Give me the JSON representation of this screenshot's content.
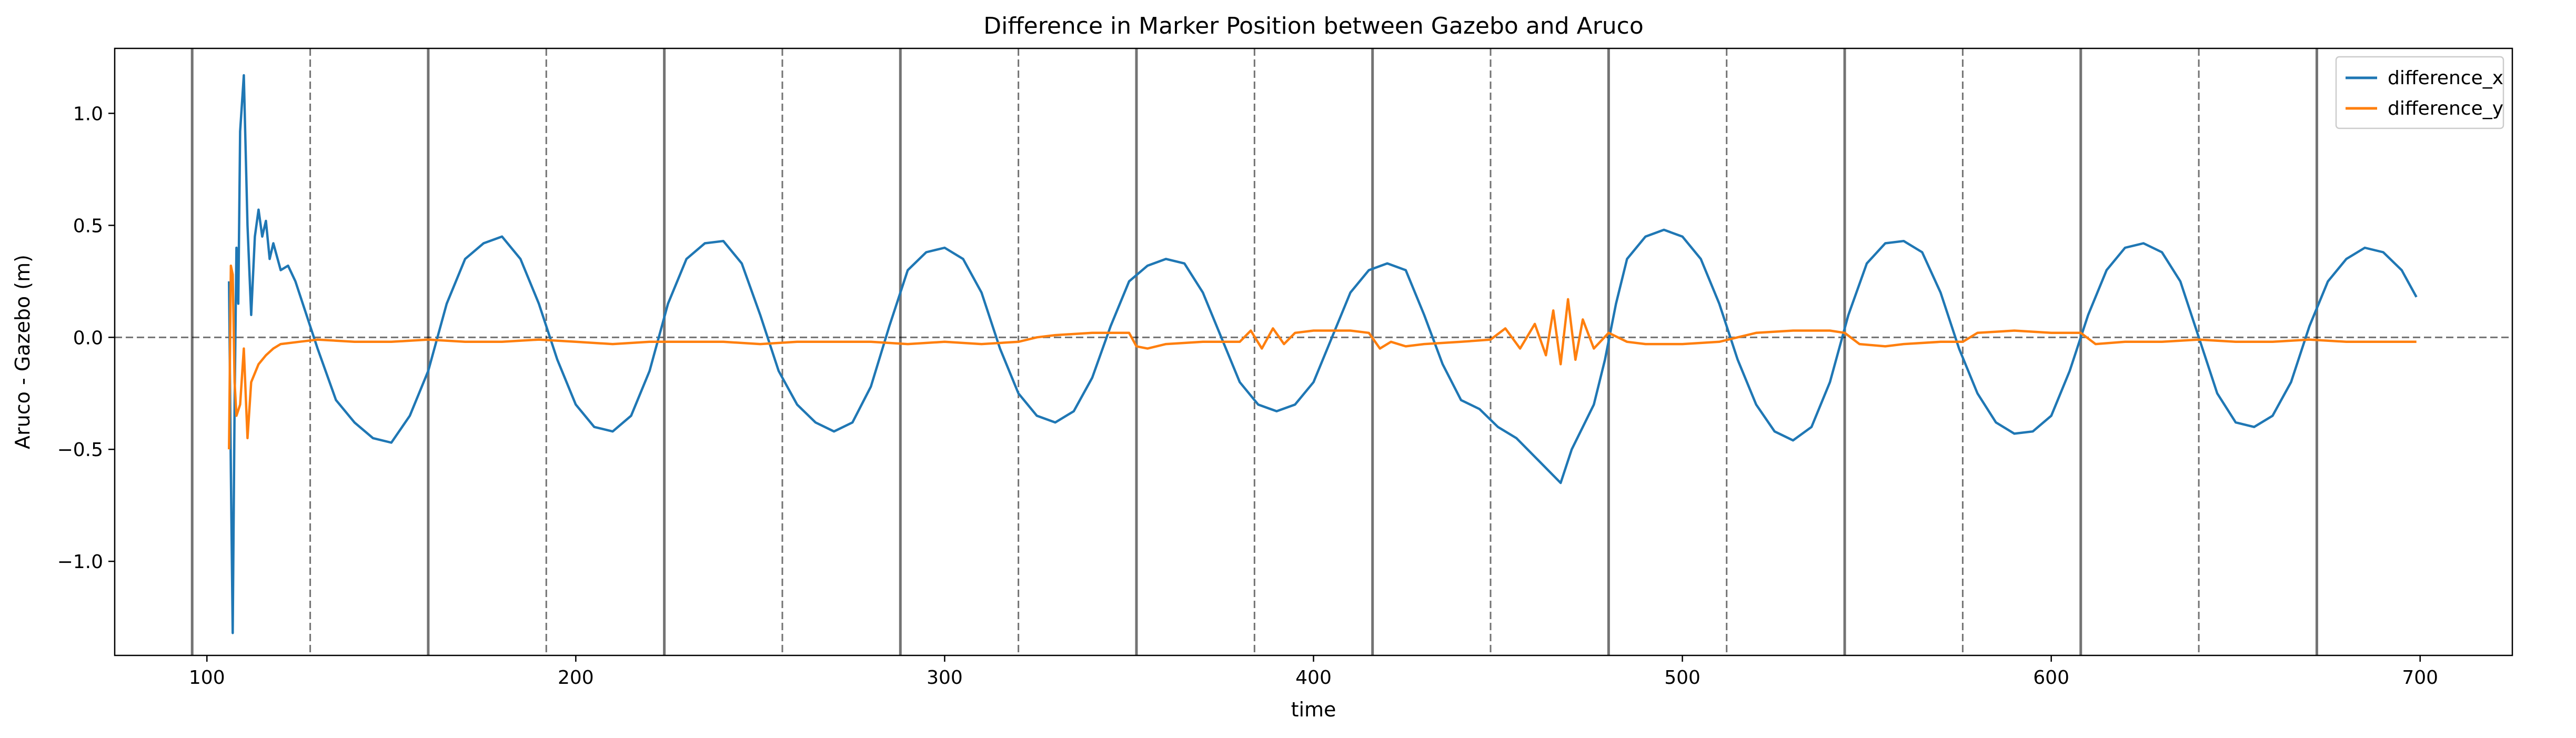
{
  "chart_data": {
    "type": "line",
    "title": "Difference in Marker Position between Gazebo and Aruco",
    "xlabel": "time",
    "ylabel": "Aruco - Gazebo (m)",
    "xlim": [
      75,
      725
    ],
    "ylim": [
      -1.42,
      1.29
    ],
    "xticks": [
      100,
      200,
      300,
      400,
      500,
      600,
      700
    ],
    "yticks": [
      -1.0,
      -0.5,
      0.0,
      0.5,
      1.0
    ],
    "ytick_labels": [
      "−1.0",
      "−0.5",
      "0.0",
      "0.5",
      "1.0"
    ],
    "grid": false,
    "legend": "top-right",
    "zero_line": 0.0,
    "solid_vlines": [
      96,
      160,
      224,
      288,
      352,
      416,
      480,
      544,
      608,
      672
    ],
    "dashed_vlines": [
      128,
      192,
      256,
      320,
      384,
      448,
      512,
      576,
      640
    ],
    "series": [
      {
        "name": "difference_x",
        "color": "#1f77b4",
        "x": [
          106,
          106.5,
          107,
          107.5,
          108,
          108.5,
          109,
          110,
          111,
          112,
          113,
          114,
          115,
          116,
          117,
          118,
          120,
          122,
          124,
          126,
          130,
          135,
          140,
          145,
          150,
          155,
          160,
          165,
          170,
          175,
          180,
          185,
          190,
          195,
          200,
          205,
          210,
          215,
          220,
          225,
          230,
          235,
          240,
          245,
          250,
          255,
          260,
          265,
          270,
          275,
          280,
          285,
          290,
          295,
          300,
          305,
          310,
          315,
          320,
          325,
          330,
          335,
          340,
          345,
          350,
          355,
          360,
          365,
          370,
          375,
          380,
          385,
          390,
          395,
          400,
          405,
          410,
          415,
          420,
          425,
          430,
          435,
          440,
          445,
          450,
          455,
          458,
          461,
          464,
          467,
          470,
          473,
          476,
          479,
          482,
          485,
          490,
          495,
          500,
          505,
          510,
          515,
          520,
          525,
          530,
          535,
          540,
          545,
          550,
          555,
          560,
          565,
          570,
          575,
          580,
          585,
          590,
          595,
          600,
          605,
          610,
          615,
          620,
          625,
          630,
          635,
          640,
          645,
          650,
          655,
          660,
          665,
          670,
          675,
          680,
          685,
          690,
          695,
          699
        ],
        "y": [
          0.25,
          -0.6,
          -1.32,
          -0.3,
          0.4,
          0.15,
          0.92,
          1.17,
          0.5,
          0.1,
          0.45,
          0.57,
          0.45,
          0.52,
          0.35,
          0.42,
          0.3,
          0.32,
          0.25,
          0.15,
          -0.05,
          -0.28,
          -0.38,
          -0.45,
          -0.47,
          -0.35,
          -0.15,
          0.15,
          0.35,
          0.42,
          0.45,
          0.35,
          0.15,
          -0.1,
          -0.3,
          -0.4,
          -0.42,
          -0.35,
          -0.15,
          0.15,
          0.35,
          0.42,
          0.43,
          0.33,
          0.1,
          -0.15,
          -0.3,
          -0.38,
          -0.42,
          -0.38,
          -0.22,
          0.05,
          0.3,
          0.38,
          0.4,
          0.35,
          0.2,
          -0.05,
          -0.25,
          -0.35,
          -0.38,
          -0.33,
          -0.18,
          0.05,
          0.25,
          0.32,
          0.35,
          0.33,
          0.2,
          0.0,
          -0.2,
          -0.3,
          -0.33,
          -0.3,
          -0.2,
          0.0,
          0.2,
          0.3,
          0.33,
          0.3,
          0.1,
          -0.12,
          -0.28,
          -0.32,
          -0.4,
          -0.45,
          -0.5,
          -0.55,
          -0.6,
          -0.65,
          -0.5,
          -0.4,
          -0.3,
          -0.1,
          0.15,
          0.35,
          0.45,
          0.48,
          0.45,
          0.35,
          0.15,
          -0.1,
          -0.3,
          -0.42,
          -0.46,
          -0.4,
          -0.2,
          0.1,
          0.33,
          0.42,
          0.43,
          0.38,
          0.2,
          -0.05,
          -0.25,
          -0.38,
          -0.43,
          -0.42,
          -0.35,
          -0.15,
          0.1,
          0.3,
          0.4,
          0.42,
          0.38,
          0.25,
          0.0,
          -0.25,
          -0.38,
          -0.4,
          -0.35,
          -0.2,
          0.05,
          0.25,
          0.35,
          0.4,
          0.38,
          0.3,
          0.18
        ]
      },
      {
        "name": "difference_y",
        "color": "#ff7f0e",
        "x": [
          106,
          106.5,
          107,
          107.5,
          108,
          109,
          110,
          111,
          112,
          114,
          116,
          118,
          120,
          125,
          130,
          140,
          150,
          160,
          170,
          180,
          190,
          200,
          210,
          220,
          230,
          240,
          250,
          260,
          270,
          280,
          290,
          300,
          310,
          320,
          325,
          330,
          340,
          350,
          352,
          355,
          360,
          370,
          380,
          383,
          386,
          389,
          392,
          395,
          400,
          410,
          415,
          418,
          421,
          425,
          430,
          440,
          448,
          452,
          456,
          460,
          463,
          465,
          467,
          469,
          471,
          473,
          476,
          480,
          485,
          490,
          500,
          510,
          520,
          530,
          540,
          544,
          548,
          555,
          560,
          570,
          576,
          580,
          590,
          600,
          608,
          612,
          620,
          630,
          640,
          650,
          660,
          670,
          680,
          690,
          699
        ],
        "y": [
          -0.5,
          0.32,
          0.28,
          -0.2,
          -0.35,
          -0.3,
          -0.05,
          -0.45,
          -0.2,
          -0.12,
          -0.08,
          -0.05,
          -0.03,
          -0.02,
          -0.01,
          -0.02,
          -0.02,
          -0.01,
          -0.02,
          -0.02,
          -0.01,
          -0.02,
          -0.03,
          -0.02,
          -0.02,
          -0.02,
          -0.03,
          -0.02,
          -0.02,
          -0.02,
          -0.03,
          -0.02,
          -0.03,
          -0.02,
          0.0,
          0.01,
          0.02,
          0.02,
          -0.04,
          -0.05,
          -0.03,
          -0.02,
          -0.02,
          0.03,
          -0.05,
          0.04,
          -0.03,
          0.02,
          0.03,
          0.03,
          0.02,
          -0.05,
          -0.02,
          -0.04,
          -0.03,
          -0.02,
          -0.01,
          0.04,
          -0.05,
          0.06,
          -0.08,
          0.12,
          -0.12,
          0.17,
          -0.1,
          0.08,
          -0.05,
          0.02,
          -0.02,
          -0.03,
          -0.03,
          -0.02,
          0.02,
          0.03,
          0.03,
          0.02,
          -0.03,
          -0.04,
          -0.03,
          -0.02,
          -0.02,
          0.02,
          0.03,
          0.02,
          0.02,
          -0.03,
          -0.02,
          -0.02,
          -0.01,
          -0.02,
          -0.02,
          -0.01,
          -0.02,
          -0.02,
          -0.02
        ]
      }
    ]
  }
}
